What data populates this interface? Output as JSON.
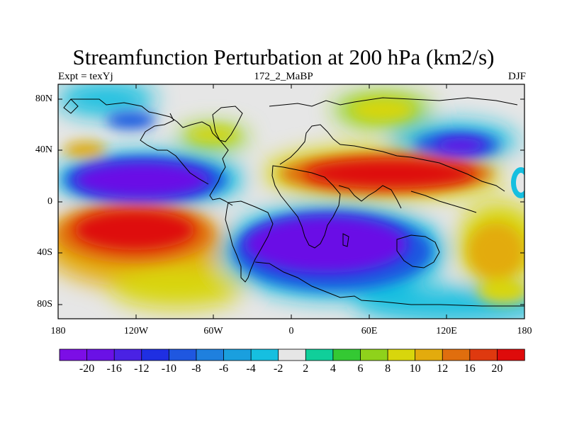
{
  "title": "Streamfunction Perturbation at 200 hPa (km2/s)",
  "left_label": "Expt = texYj",
  "center_label": "172_2_MaBP",
  "right_label": "DJF",
  "map": {
    "projection": "cylindrical-equidistant",
    "lon_range": [
      -180,
      180
    ],
    "lat_range": [
      -90,
      90
    ],
    "y_ticks": [
      {
        "label": "80N",
        "lat": 80
      },
      {
        "label": "40N",
        "lat": 40
      },
      {
        "label": "0",
        "lat": 0
      },
      {
        "label": "40S",
        "lat": -40
      },
      {
        "label": "80S",
        "lat": -80
      }
    ],
    "x_ticks": [
      {
        "label": "180",
        "lon": -180
      },
      {
        "label": "120W",
        "lon": -120
      },
      {
        "label": "60W",
        "lon": -60
      },
      {
        "label": "0",
        "lon": 0
      },
      {
        "label": "60E",
        "lon": 60
      },
      {
        "label": "120E",
        "lon": 120
      },
      {
        "label": "180",
        "lon": 180
      }
    ]
  },
  "colorbar": {
    "labels": [
      "-20",
      "-16",
      "-12",
      "-10",
      "-8",
      "-6",
      "-4",
      "-2",
      "2",
      "4",
      "6",
      "8",
      "10",
      "12",
      "16",
      "20"
    ],
    "colors": [
      "#7c0ee6",
      "#6a11e6",
      "#4a22e4",
      "#1f2fe2",
      "#1f57e0",
      "#1f80de",
      "#1a9fde",
      "#16bfe0",
      "#e6e6e6",
      "#10cf9a",
      "#34c933",
      "#8fd21b",
      "#d8d60c",
      "#e3ab0d",
      "#e06e0e",
      "#df390f",
      "#de0b0b"
    ]
  }
}
